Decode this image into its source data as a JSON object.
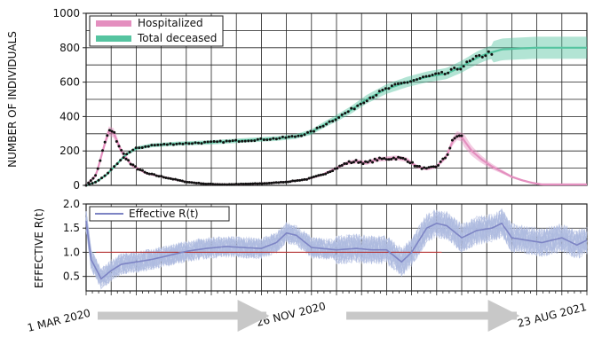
{
  "chart_data": [
    {
      "type": "line",
      "ylabel": "NUMBER OF INDIVIDUALS",
      "ylim": [
        0,
        1000
      ],
      "yticks": [
        "0",
        "200",
        "400",
        "600",
        "800",
        "1000"
      ],
      "x_dates": [
        "1 MAR 2020",
        "26 NOV 2020",
        "23 AUG 2021"
      ],
      "grid": true,
      "legend_position": "top-left",
      "series": [
        {
          "name": "Hospitalized",
          "color": "#e48fbf",
          "observed_color": "#111111",
          "t": [
            0,
            0.02,
            0.035,
            0.045,
            0.055,
            0.07,
            0.09,
            0.12,
            0.16,
            0.2,
            0.24,
            0.28,
            0.32,
            0.36,
            0.4,
            0.44,
            0.47,
            0.5,
            0.52,
            0.54,
            0.56,
            0.58,
            0.6,
            0.62,
            0.64,
            0.66,
            0.68,
            0.7,
            0.72,
            0.73,
            0.74,
            0.75,
            0.77,
            0.79,
            0.81,
            0.83,
            0.85,
            0.87,
            0.89,
            0.91
          ],
          "values": [
            0,
            60,
            220,
            315,
            305,
            200,
            120,
            70,
            45,
            20,
            8,
            5,
            8,
            12,
            20,
            35,
            60,
            100,
            130,
            140,
            130,
            150,
            155,
            160,
            150,
            110,
            95,
            110,
            170,
            245,
            290,
            280,
            200,
            150,
            110,
            80,
            50,
            30,
            15,
            5
          ],
          "observed_until": 0.75
        },
        {
          "name": "Total deceased",
          "color": "#55c4a0",
          "observed_color": "#111111",
          "t": [
            0,
            0.02,
            0.04,
            0.06,
            0.08,
            0.1,
            0.13,
            0.18,
            0.25,
            0.32,
            0.38,
            0.42,
            0.45,
            0.48,
            0.5,
            0.53,
            0.56,
            0.6,
            0.64,
            0.68,
            0.72,
            0.75,
            0.78,
            0.8,
            0.83,
            0.86,
            0.9,
            0.95,
            1.0
          ],
          "values": [
            0,
            20,
            60,
            120,
            180,
            215,
            232,
            242,
            250,
            262,
            272,
            285,
            310,
            360,
            390,
            440,
            500,
            560,
            600,
            630,
            650,
            690,
            740,
            765,
            790,
            795,
            800,
            800,
            800
          ],
          "observed_until": 0.81
        }
      ]
    },
    {
      "type": "line",
      "ylabel": "EFFECTIVE R(t)",
      "ylim": [
        0.2,
        2.0
      ],
      "yticks": [
        "0.5",
        "1.0",
        "1.5",
        "2.0"
      ],
      "reference_line": 1.0,
      "reference_color": "#b33030",
      "grid": true,
      "legend_position": "top-left",
      "series": [
        {
          "name": "Effective R(t)",
          "color": "#7d84c4",
          "band_color": "#aebbe0",
          "t": [
            0,
            0.01,
            0.03,
            0.05,
            0.07,
            0.1,
            0.13,
            0.16,
            0.2,
            0.24,
            0.28,
            0.31,
            0.35,
            0.38,
            0.4,
            0.42,
            0.45,
            0.5,
            0.54,
            0.57,
            0.6,
            0.63,
            0.65,
            0.68,
            0.7,
            0.72,
            0.75,
            0.78,
            0.81,
            0.83,
            0.85,
            0.88,
            0.91,
            0.95,
            0.98,
            1.0
          ],
          "values": [
            1.65,
            0.85,
            0.45,
            0.62,
            0.75,
            0.8,
            0.85,
            0.92,
            1.02,
            1.08,
            1.12,
            1.1,
            1.08,
            1.2,
            1.4,
            1.35,
            1.1,
            1.05,
            1.08,
            1.05,
            1.05,
            0.8,
            1.0,
            1.5,
            1.6,
            1.55,
            1.3,
            1.45,
            1.5,
            1.6,
            1.3,
            1.25,
            1.2,
            1.3,
            1.15,
            1.25
          ]
        }
      ]
    }
  ]
}
